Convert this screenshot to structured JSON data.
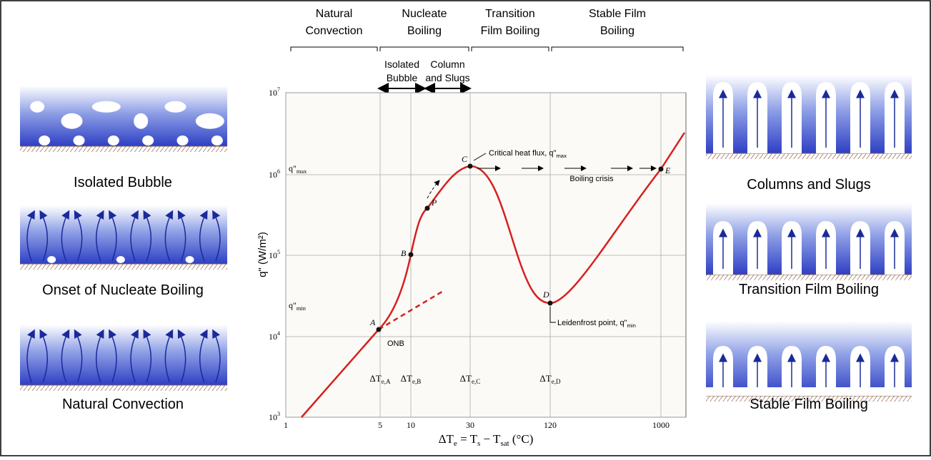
{
  "regimes": [
    {
      "lines": [
        "Natural",
        "Convection"
      ]
    },
    {
      "lines": [
        "Nucleate",
        "Boiling"
      ]
    },
    {
      "lines": [
        "Transition",
        "Film Boiling"
      ]
    },
    {
      "lines": [
        "Stable Film",
        "Boiling"
      ]
    }
  ],
  "sub_regimes": [
    {
      "lines": [
        "Isolated",
        "Bubble"
      ]
    },
    {
      "lines": [
        "Column",
        "and Slugs"
      ]
    }
  ],
  "left_panels": [
    "Isolated Bubble",
    "Onset of Nucleate Boiling",
    "Natural Convection"
  ],
  "right_panels": [
    "Columns and Slugs",
    "Transition Film Boiling",
    "Stable Film Boiling"
  ],
  "plot": {
    "y_axis_label": "q\" (W/m²)",
    "y_ticks": [
      {
        "base": "10",
        "exponent": "3"
      },
      {
        "base": "10",
        "exponent": "4"
      },
      {
        "base": "10",
        "exponent": "5"
      },
      {
        "base": "10",
        "exponent": "6"
      },
      {
        "base": "10",
        "exponent": "7"
      }
    ],
    "x_ticks": [
      "1",
      "5",
      "10",
      "30",
      "120",
      "1000"
    ],
    "x_axis_label": {
      "parts": [
        "ΔT",
        "e",
        " = T",
        "s",
        " − T",
        "sat",
        " (°C)"
      ]
    },
    "delta_labels": [
      {
        "main": "ΔT",
        "sub": "e,A"
      },
      {
        "main": "ΔT",
        "sub": "e,B"
      },
      {
        "main": "ΔT",
        "sub": "e,C"
      },
      {
        "main": "ΔT",
        "sub": "e,D"
      }
    ],
    "q_labels": [
      {
        "main": "q\"",
        "sub": "max"
      },
      {
        "main": "q\"",
        "sub": "min"
      }
    ],
    "points": [
      "A",
      "B",
      "P",
      "C",
      "D",
      "E"
    ],
    "onb": "ONB",
    "critical": {
      "main": "Critical heat flux, q\"",
      "sub": "max"
    },
    "crisis": "Boiling crisis",
    "leidenfrost": {
      "main": "Leidenfrost point, q\"",
      "sub": "min"
    }
  }
}
